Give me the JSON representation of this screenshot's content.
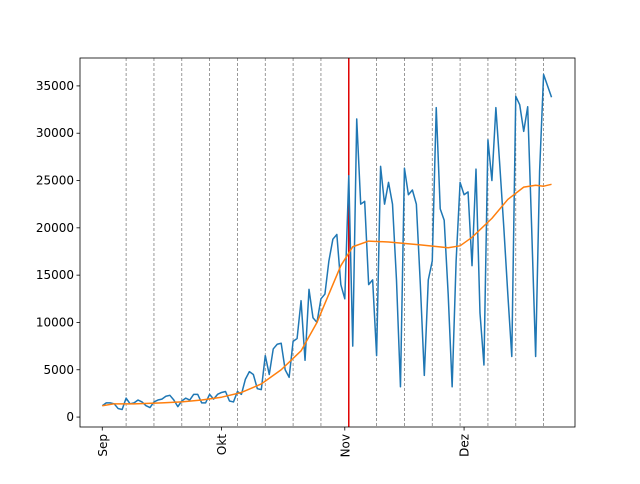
{
  "chart_data": {
    "type": "line",
    "xlim": [
      -5.6,
      118.9
    ],
    "ylim": [
      -1050,
      37950
    ],
    "xticks": [
      {
        "value": 0,
        "label": "Sep"
      },
      {
        "value": 30,
        "label": "Okt"
      },
      {
        "value": 61,
        "label": "Nov"
      },
      {
        "value": 91,
        "label": "Dez"
      }
    ],
    "yticks": [
      0,
      5000,
      10000,
      15000,
      20000,
      25000,
      30000,
      35000
    ],
    "week_lines": [
      6,
      13,
      20,
      27,
      34,
      41,
      48,
      55,
      69,
      76,
      83,
      90,
      97,
      104,
      111
    ],
    "week_line_color": "#808080",
    "marker_line": 62,
    "marker_line_color": "#e00000",
    "series": [
      {
        "color": "#1f77b4",
        "x": [
          0,
          1,
          2,
          3,
          4,
          5,
          6,
          7,
          8,
          9,
          10,
          11,
          12,
          13,
          14,
          15,
          16,
          17,
          18,
          19,
          20,
          21,
          22,
          23,
          24,
          25,
          26,
          27,
          28,
          29,
          30,
          31,
          32,
          33,
          34,
          35,
          36,
          37,
          38,
          39,
          40,
          41,
          42,
          43,
          44,
          45,
          46,
          47,
          48,
          49,
          50,
          51,
          52,
          53,
          54,
          55,
          56,
          57,
          58,
          59,
          60,
          61,
          62,
          63,
          64,
          65,
          66,
          67,
          68,
          69,
          70,
          71,
          72,
          73,
          74,
          75,
          76,
          77,
          78,
          79,
          80,
          81,
          82,
          83,
          84,
          85,
          86,
          87,
          88,
          89,
          90,
          91,
          92,
          93,
          94,
          95,
          96,
          97,
          98,
          99,
          100,
          101,
          102,
          103,
          104,
          105,
          106,
          107,
          108,
          109,
          110,
          111,
          112,
          113
        ],
        "values": [
          1200,
          1500,
          1500,
          1400,
          900,
          800,
          2000,
          1400,
          1500,
          1800,
          1600,
          1200,
          1000,
          1600,
          1800,
          1900,
          2200,
          2300,
          1800,
          1100,
          1700,
          2000,
          1800,
          2400,
          2400,
          1500,
          1500,
          2400,
          1900,
          2400,
          2600,
          2700,
          1700,
          1600,
          2700,
          2400,
          4000,
          4800,
          4500,
          3000,
          2900,
          6500,
          4500,
          7200,
          7700,
          7800,
          5000,
          4200,
          8000,
          8300,
          12300,
          6000,
          13500,
          10500,
          10000,
          12500,
          13000,
          16500,
          18800,
          19300,
          14000,
          12500,
          25500,
          7500,
          31500,
          22500,
          22800,
          14000,
          14500,
          6500,
          26500,
          22500,
          24800,
          22500,
          14500,
          3200,
          26300,
          23500,
          24000,
          22500,
          14000,
          4400,
          14500,
          16500,
          32700,
          22000,
          20800,
          13000,
          3200,
          16500,
          24800,
          23500,
          23800,
          16000,
          26200,
          11000,
          5500,
          29300,
          25000,
          32700,
          26500,
          20000,
          13000,
          6400,
          33900,
          33000,
          30200,
          32800,
          20000,
          6400,
          26000,
          36200,
          35000,
          33800
        ]
      },
      {
        "color": "#ff7f0e",
        "x": [
          0,
          3,
          8,
          15,
          20,
          25,
          30,
          35,
          40,
          45,
          50,
          54,
          57,
          60,
          63,
          67,
          72,
          80,
          87,
          90,
          93,
          98,
          102,
          106,
          109,
          111,
          113
        ],
        "values": [
          1200,
          1400,
          1400,
          1500,
          1600,
          1800,
          2100,
          2600,
          3500,
          5000,
          7000,
          10000,
          13000,
          16000,
          18000,
          18600,
          18500,
          18200,
          17900,
          18100,
          19000,
          21000,
          23000,
          24300,
          24500,
          24400,
          24600
        ]
      }
    ]
  }
}
